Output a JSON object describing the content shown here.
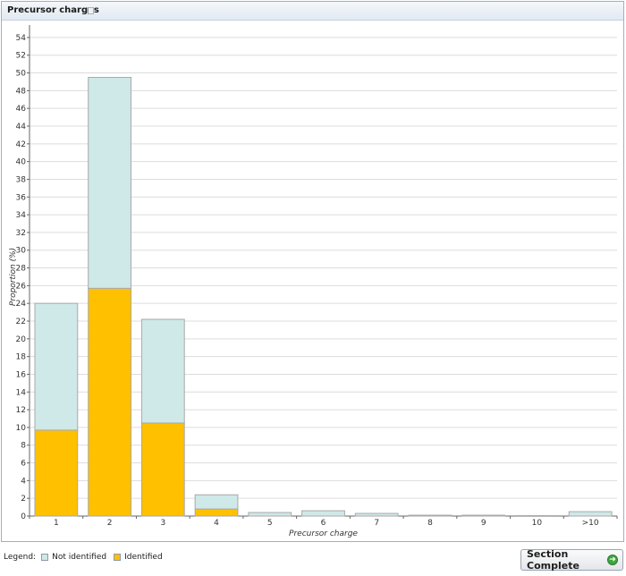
{
  "panel": {
    "title": "Precursor charges"
  },
  "legend": {
    "title": "Legend:",
    "items": [
      {
        "label": "Not identified",
        "color": "#cfe8e8"
      },
      {
        "label": "Identified",
        "color": "#ffc000"
      }
    ]
  },
  "buttons": {
    "section_complete": "Section Complete"
  },
  "icons": {
    "panel_flag": "flag-icon",
    "section_complete": "arrow-right-icon"
  },
  "chart_data": {
    "type": "bar",
    "stacked": true,
    "title": "",
    "xlabel": "Precursor charge",
    "ylabel": "Proportion (%)",
    "ylim": [
      0,
      55
    ],
    "yticks": [
      0,
      2,
      4,
      6,
      8,
      10,
      12,
      14,
      16,
      18,
      20,
      22,
      24,
      26,
      28,
      30,
      32,
      34,
      36,
      38,
      40,
      42,
      44,
      46,
      48,
      50,
      52,
      54
    ],
    "grid": true,
    "categories": [
      "1",
      "2",
      "3",
      "4",
      "5",
      "6",
      "7",
      "8",
      "9",
      "10",
      ">10"
    ],
    "series": [
      {
        "name": "Identified",
        "color": "#ffc000",
        "values": [
          9.7,
          25.7,
          10.5,
          0.8,
          0,
          0,
          0,
          0,
          0,
          0,
          0
        ]
      },
      {
        "name": "Not identified",
        "color": "#cfe8e8",
        "values": [
          14.3,
          23.8,
          11.7,
          1.6,
          0.4,
          0.6,
          0.3,
          0.1,
          0.1,
          0.05,
          0.5
        ]
      }
    ]
  }
}
